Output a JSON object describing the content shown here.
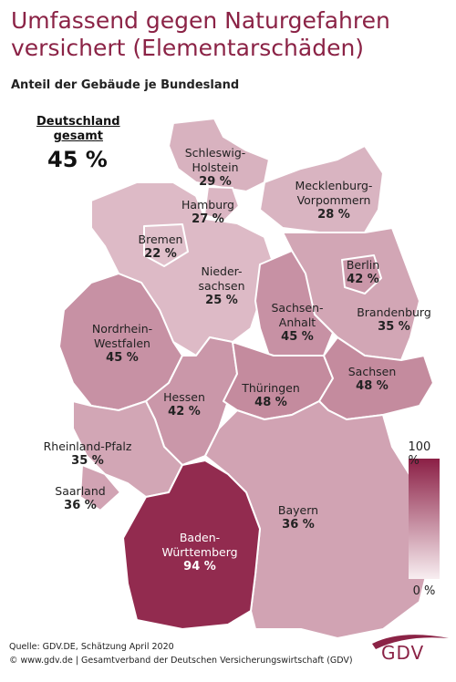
{
  "chart_data": {
    "type": "choropleth",
    "title": "Umfassend gegen Naturgefahren versichert (Elementarschäden)",
    "subtitle": "Anteil der Gebäude je Bundesland",
    "total": {
      "label": "Deutschland\ngesamt",
      "value": 45,
      "value_label": "45 %"
    },
    "categories": [
      "Schleswig-\nHolstein",
      "Hamburg",
      "Mecklenburg-\nVorpommern",
      "Bremen",
      "Nieder-\nsachsen",
      "Berlin",
      "Brandenburg",
      "Sachsen-\nAnhalt",
      "Nordrhein-\nWestfalen",
      "Hessen",
      "Thüringen",
      "Sachsen",
      "Rheinland-Pfalz",
      "Saarland",
      "Baden-\nWürttemberg",
      "Bayern"
    ],
    "values": [
      29,
      27,
      28,
      22,
      25,
      42,
      35,
      45,
      45,
      42,
      48,
      48,
      35,
      36,
      94,
      36
    ],
    "value_labels": [
      "29 %",
      "27 %",
      "28 %",
      "22 %",
      "25 %",
      "42 %",
      "35 %",
      "45 %",
      "45 %",
      "42 %",
      "48 %",
      "48 %",
      "35 %",
      "36 %",
      "94 %",
      "36 %"
    ],
    "colorscale": {
      "lim": [
        0,
        100
      ],
      "ticks": [
        {
          "value": 100,
          "label": "100 %"
        },
        {
          "value": 0,
          "label": "0 %"
        }
      ],
      "colors": [
        "#f8eef1",
        "#8b1f45"
      ]
    }
  },
  "source": "Quelle: GDV.DE, Schätzung April 2020",
  "copyright": "© www.gdv.de | Gesamtverband der Deutschen Versicherungswirtschaft (GDV)",
  "logo": "GDV"
}
